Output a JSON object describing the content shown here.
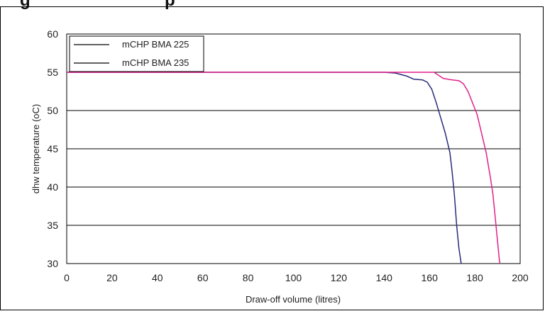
{
  "chart_data": {
    "type": "line",
    "title_fragment_left": "g",
    "title_fragment_right": "p",
    "xlabel": "Draw-off volume (litres)",
    "ylabel": "dhw temperature (oC)",
    "xlim": [
      0,
      200
    ],
    "ylim": [
      30,
      60
    ],
    "x_ticks": [
      0,
      20,
      40,
      60,
      80,
      100,
      120,
      140,
      160,
      180,
      200
    ],
    "y_ticks": [
      30,
      35,
      40,
      45,
      50,
      55,
      60
    ],
    "grid": "horizontal",
    "legend_position": "top-left",
    "colors": {
      "series_1": "#2a2a7a",
      "series_2": "#e0218a",
      "grid": "#000000"
    },
    "series": [
      {
        "name": "mCHP BMA 225",
        "points": [
          [
            0,
            55
          ],
          [
            140,
            55
          ],
          [
            145,
            54.9
          ],
          [
            150,
            54.5
          ],
          [
            153,
            54.1
          ],
          [
            157,
            54
          ],
          [
            159,
            53.7
          ],
          [
            161,
            52.8
          ],
          [
            163,
            51
          ],
          [
            165,
            49
          ],
          [
            167,
            47
          ],
          [
            169,
            44.5
          ],
          [
            170,
            42
          ],
          [
            171,
            39
          ],
          [
            172,
            35
          ],
          [
            173,
            32
          ],
          [
            174,
            30
          ]
        ]
      },
      {
        "name": "mCHP BMA 235",
        "points": [
          [
            0,
            55
          ],
          [
            162,
            55
          ],
          [
            164,
            54.6
          ],
          [
            166,
            54.2
          ],
          [
            170,
            54
          ],
          [
            173,
            53.9
          ],
          [
            175,
            53.5
          ],
          [
            177,
            52.5
          ],
          [
            179,
            51
          ],
          [
            181,
            49.5
          ],
          [
            183,
            47
          ],
          [
            185,
            44.5
          ],
          [
            187,
            41
          ],
          [
            188,
            39
          ],
          [
            189,
            36
          ],
          [
            190,
            33
          ],
          [
            191,
            30
          ]
        ]
      }
    ]
  }
}
